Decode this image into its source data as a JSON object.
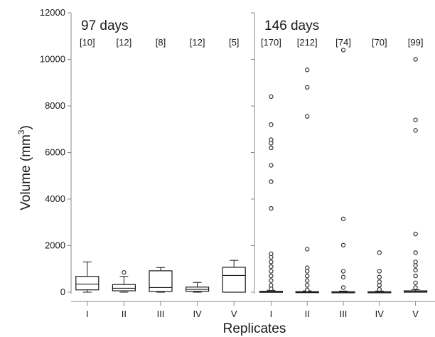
{
  "chart_data": {
    "type": "boxplot",
    "ylabel": "Volume (mm",
    "ylabel_sup": "3",
    "ylabel_close": ")",
    "xlabel": "Replicates",
    "ylim": [
      0,
      12000
    ],
    "yticks": [
      0,
      2000,
      4000,
      6000,
      8000,
      10000,
      12000
    ],
    "categories": [
      "I",
      "II",
      "III",
      "IV",
      "V"
    ],
    "panels": [
      {
        "title": "97 days",
        "groups": [
          {
            "category": "I",
            "n": "[10]",
            "whisker_low": 0,
            "q1": 100,
            "median": 350,
            "q3": 680,
            "whisker_high": 1300,
            "outliers": []
          },
          {
            "category": "II",
            "n": "[12]",
            "whisker_low": 0,
            "q1": 60,
            "median": 170,
            "q3": 330,
            "whisker_high": 680,
            "outliers": [
              850
            ]
          },
          {
            "category": "III",
            "n": "[8]",
            "whisker_low": 0,
            "q1": 30,
            "median": 200,
            "q3": 920,
            "whisker_high": 1060,
            "outliers": []
          },
          {
            "category": "IV",
            "n": "[12]",
            "whisker_low": 0,
            "q1": 40,
            "median": 120,
            "q3": 220,
            "whisker_high": 420,
            "outliers": []
          },
          {
            "category": "V",
            "n": "[5]",
            "whisker_low": 0,
            "q1": 0,
            "median": 720,
            "q3": 1070,
            "whisker_high": 1370,
            "outliers": []
          }
        ]
      },
      {
        "title": "146 days",
        "groups": [
          {
            "category": "I",
            "n": "[170]",
            "whisker_low": 0,
            "q1": 0,
            "median": 10,
            "q3": 40,
            "whisker_high": 80,
            "outliers": [
              150,
              300,
              500,
              700,
              900,
              1100,
              1300,
              1500,
              1650,
              3600,
              4750,
              5450,
              6200,
              6400,
              6550,
              7200,
              8400
            ]
          },
          {
            "category": "II",
            "n": "[212]",
            "whisker_low": 0,
            "q1": 0,
            "median": 5,
            "q3": 25,
            "whisker_high": 60,
            "outliers": [
              100,
              300,
              500,
              700,
              900,
              1050,
              1850,
              7550,
              8800,
              9550
            ]
          },
          {
            "category": "III",
            "n": "[74]",
            "whisker_low": 0,
            "q1": 0,
            "median": 5,
            "q3": 20,
            "whisker_high": 50,
            "outliers": [
              200,
              650,
              900,
              2020,
              3150,
              10400
            ]
          },
          {
            "category": "IV",
            "n": "[70]",
            "whisker_low": 0,
            "q1": 0,
            "median": 5,
            "q3": 20,
            "whisker_high": 50,
            "outliers": [
              120,
              300,
              450,
              650,
              900,
              1700
            ]
          },
          {
            "category": "V",
            "n": "[99]",
            "whisker_low": 0,
            "q1": 0,
            "median": 20,
            "q3": 60,
            "whisker_high": 110,
            "outliers": [
              200,
              400,
              700,
              950,
              1150,
              1300,
              1700,
              2500,
              6950,
              7400,
              10000
            ]
          }
        ]
      }
    ]
  },
  "colors": {
    "axis": "#888888",
    "box": "#1a1a1a",
    "outlier_stroke": "#333333"
  }
}
